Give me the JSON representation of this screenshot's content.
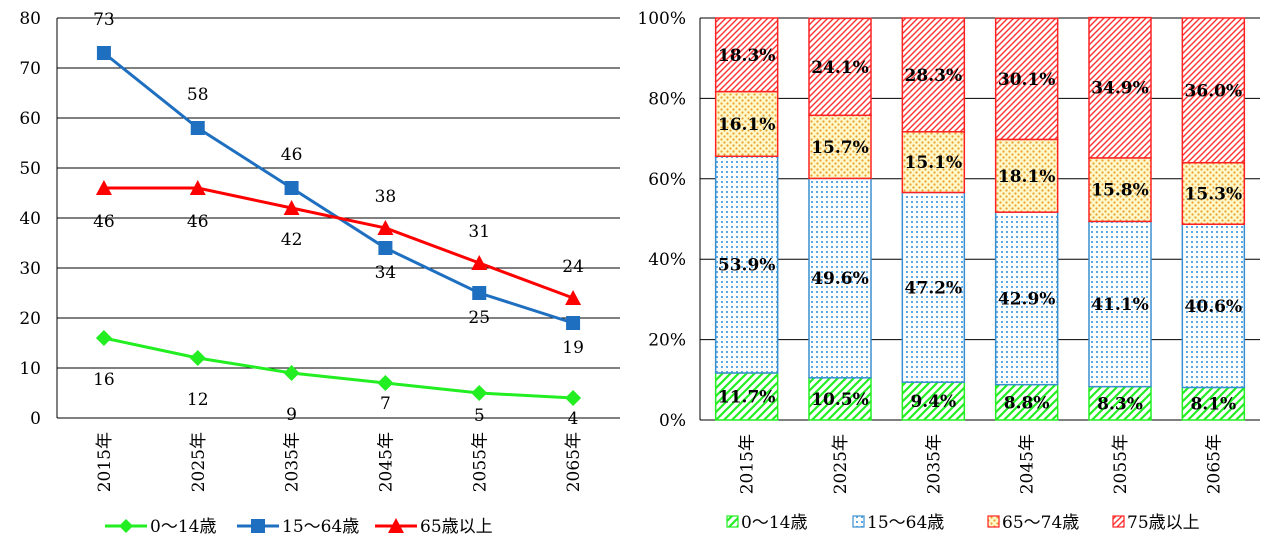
{
  "chart_data": [
    {
      "type": "line",
      "categories": [
        "2015年",
        "2025年",
        "2035年",
        "2045年",
        "2055年",
        "2065年"
      ],
      "ylim": [
        0,
        80
      ],
      "yticks": [
        "0",
        "10",
        "20",
        "30",
        "40",
        "50",
        "60",
        "70",
        "80"
      ],
      "grid": true,
      "legend_position": "bottom",
      "series": [
        {
          "name": "0～14歳",
          "color": "#22ee22",
          "marker": "diamond",
          "values": [
            16,
            12,
            9,
            7,
            5,
            4
          ],
          "labels": [
            "16",
            "12",
            "9",
            "7",
            "5",
            "4"
          ]
        },
        {
          "name": "15～64歳",
          "color": "#1f6fc0",
          "marker": "square",
          "values": [
            73,
            58,
            46,
            34,
            25,
            19
          ],
          "labels": [
            "73",
            "58",
            "46",
            "34",
            "25",
            "19"
          ]
        },
        {
          "name": "65歳以上",
          "color": "#ff0000",
          "marker": "triangle",
          "values": [
            46,
            46,
            42,
            38,
            31,
            24
          ],
          "labels": [
            "46",
            "46",
            "42",
            "38",
            "31",
            "24"
          ]
        }
      ]
    },
    {
      "type": "bar",
      "stacked": "percent",
      "categories": [
        "2015年",
        "2025年",
        "2035年",
        "2045年",
        "2055年",
        "2065年"
      ],
      "ylim": [
        0,
        100
      ],
      "yticks": [
        "0%",
        "20%",
        "40%",
        "60%",
        "80%",
        "100%"
      ],
      "grid": true,
      "legend_position": "bottom",
      "series": [
        {
          "name": "0～14歳",
          "color": "#22ee22",
          "pattern": "diagonal-light",
          "values": [
            11.7,
            10.5,
            9.4,
            8.8,
            8.3,
            8.1
          ],
          "labels": [
            "11.7%",
            "10.5%",
            "9.4%",
            "8.8%",
            "8.3%",
            "8.1%"
          ]
        },
        {
          "name": "15～64歳",
          "color": "#3a8fd0",
          "pattern": "dots",
          "values": [
            53.9,
            49.6,
            47.2,
            42.9,
            41.1,
            40.6
          ],
          "labels": [
            "53.9%",
            "49.6%",
            "47.2%",
            "42.9%",
            "41.1%",
            "40.6%"
          ]
        },
        {
          "name": "65～74歳",
          "color": "#ff2222",
          "pattern": "dots-yellow",
          "values": [
            16.1,
            15.7,
            15.1,
            18.1,
            15.8,
            15.3
          ],
          "labels": [
            "16.1%",
            "15.7%",
            "15.1%",
            "18.1%",
            "15.8%",
            "15.3%"
          ]
        },
        {
          "name": "75歳以上",
          "color": "#ff2222",
          "pattern": "diagonal",
          "values": [
            18.3,
            24.1,
            28.3,
            30.1,
            34.9,
            36.0
          ],
          "labels": [
            "18.3%",
            "24.1%",
            "28.3%",
            "30.1%",
            "34.9%",
            "36.0%"
          ]
        }
      ]
    }
  ]
}
